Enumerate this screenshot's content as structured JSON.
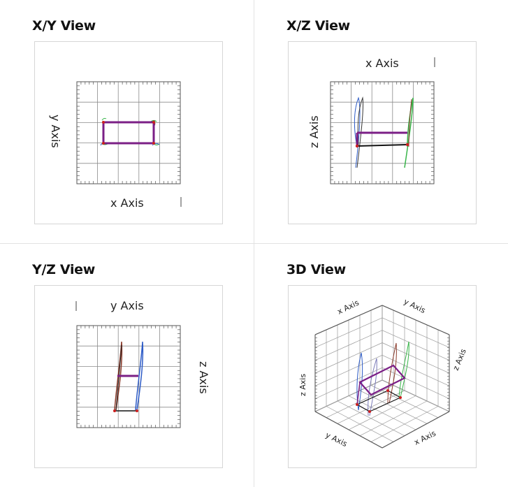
{
  "views": {
    "xy": {
      "title": "X/Y View",
      "x_label": "x Axis",
      "y_label": "y Axis"
    },
    "xz": {
      "title": "X/Z View",
      "x_label": "x Axis",
      "z_label": "z Axis"
    },
    "yz": {
      "title": "Y/Z View",
      "y_label": "y Axis",
      "z_label": "z Axis"
    },
    "three_d": {
      "title": "3D View",
      "labels": {
        "x_top": "x Axis",
        "y_top": "y Axis",
        "z_left": "z Axis",
        "z_right": "z Axis",
        "y_bottom": "y Axis",
        "x_bottom": "x Axis"
      }
    }
  },
  "colors": {
    "frame_outline": "#9c9c9c",
    "purple_member": "#7b1f86",
    "black_member": "#111111",
    "red_joint": "#cc1f1f",
    "green_leg": "#39b54a",
    "blue_leg": "#2e5cc7",
    "brown_leg": "#8a3a2a"
  }
}
